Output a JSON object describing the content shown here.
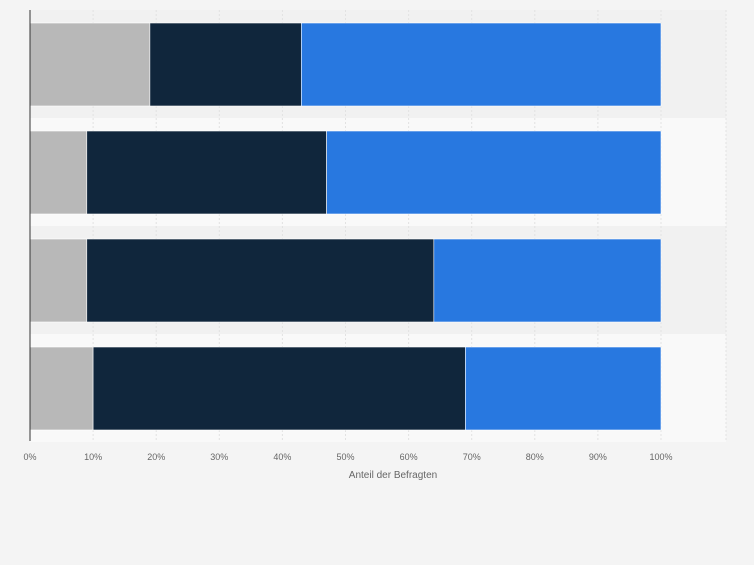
{
  "chart_data": {
    "type": "bar",
    "orientation": "horizontal",
    "stacked": true,
    "categories": [
      "",
      "",
      "",
      ""
    ],
    "series": [
      {
        "values": [
          19,
          9,
          9,
          10
        ]
      },
      {
        "values": [
          24,
          38,
          55,
          59
        ]
      },
      {
        "values": [
          57,
          53,
          36,
          31
        ]
      }
    ],
    "xlabel": "Anteil der Befragten",
    "ylabel": "",
    "xlim": [
      0,
      100
    ],
    "xticks": [
      "0%",
      "10%",
      "20%",
      "30%",
      "40%",
      "50%",
      "60%",
      "70%",
      "80%",
      "90%",
      "100%"
    ],
    "grid": true,
    "legend": "none"
  },
  "colors": {
    "series": [
      "#b8b8b8",
      "#10263c",
      "#2878e0"
    ],
    "page_background": "#f4f4f4",
    "plot_band_light": "#f9f9f9",
    "plot_band_dark": "#f1f1f1",
    "gridline": "#e2e2e2",
    "axis": "#333333",
    "tick_text": "#666666"
  }
}
